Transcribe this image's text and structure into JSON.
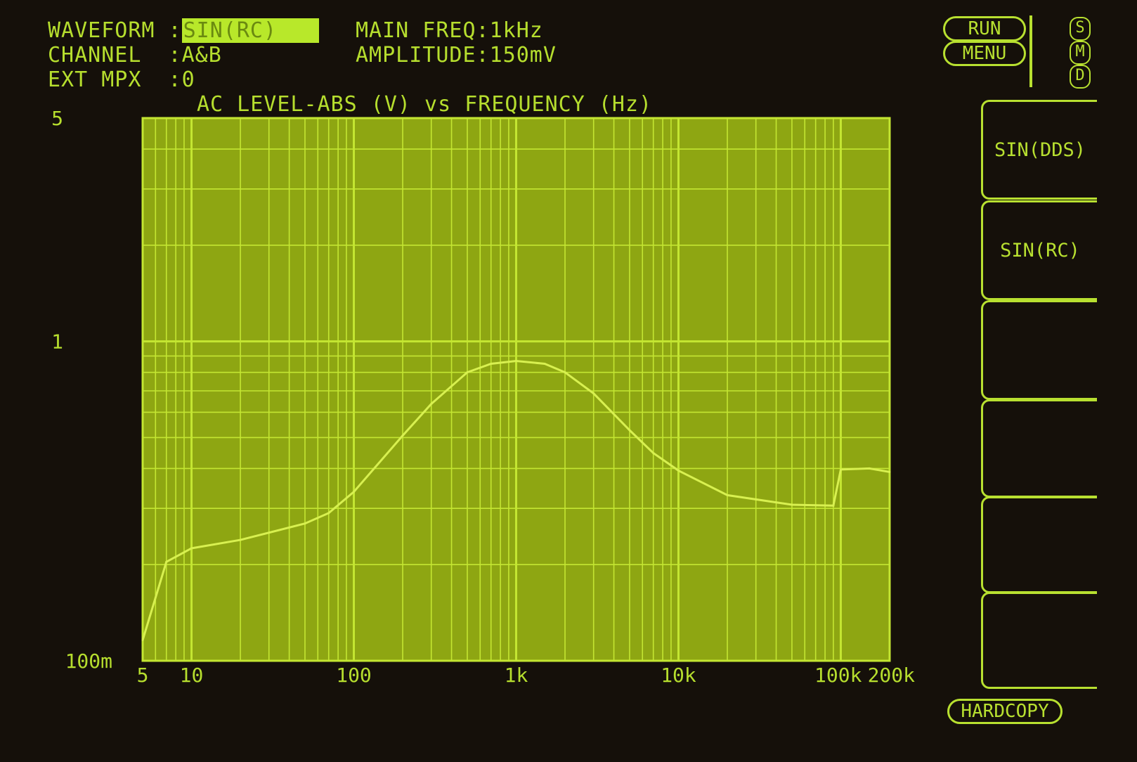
{
  "header": {
    "waveform_label": "WAVEFORM :",
    "waveform_value": "SIN(RC)",
    "channel_label": "CHANNEL  :",
    "channel_value": "A&B",
    "extmpx_label": "EXT MPX  :",
    "extmpx_value": "0",
    "main_freq": "MAIN FREQ:1kHz",
    "amplitude": "AMPLITUDE:150mV"
  },
  "buttons": {
    "run": "RUN",
    "menu": "MENU",
    "hardcopy": "HARDCOPY"
  },
  "indicators": [
    "S",
    "M",
    "D"
  ],
  "softkeys": [
    "SIN(DDS)",
    "SIN(RC)",
    "",
    "",
    "",
    ""
  ],
  "colors": {
    "screen": "#15100a",
    "plot": "#8ea612",
    "trace": "#d8f050",
    "grid": "#c4e632"
  },
  "chart_data": {
    "type": "line",
    "title": "AC LEVEL-ABS (V) vs FREQUENCY (Hz)",
    "x_scale": "log",
    "y_scale": "log",
    "grid": true,
    "xlim": [
      5,
      200000
    ],
    "ylim": [
      0.1,
      5
    ],
    "x_tick_labels": [
      {
        "v": 5,
        "t": "5"
      },
      {
        "v": 10,
        "t": "10"
      },
      {
        "v": 100,
        "t": "100"
      },
      {
        "v": 1000,
        "t": "1k"
      },
      {
        "v": 10000,
        "t": "10k"
      },
      {
        "v": 100000,
        "t": "100k"
      },
      {
        "v": 200000,
        "t": "200k"
      }
    ],
    "y_tick_labels": [
      {
        "v": 5,
        "t": "5"
      },
      {
        "v": 1,
        "t": "1"
      },
      {
        "v": 0.1,
        "t": "100m"
      }
    ],
    "x": [
      5,
      7,
      10,
      20,
      50,
      70,
      100,
      200,
      300,
      500,
      700,
      1000,
      1500,
      2000,
      3000,
      5000,
      7000,
      10000,
      20000,
      50000,
      90000,
      100000,
      150000,
      200000
    ],
    "y": [
      0.116,
      0.204,
      0.225,
      0.239,
      0.269,
      0.29,
      0.338,
      0.507,
      0.637,
      0.8,
      0.851,
      0.868,
      0.851,
      0.8,
      0.687,
      0.527,
      0.447,
      0.394,
      0.33,
      0.308,
      0.306,
      0.397,
      0.4,
      0.39
    ]
  }
}
